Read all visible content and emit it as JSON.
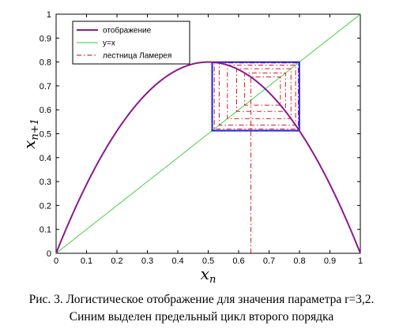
{
  "chart_data": {
    "type": "line",
    "parameter_r": 3.2,
    "xlim": [
      0,
      1
    ],
    "ylim": [
      0,
      1
    ],
    "xticks": [
      "0",
      "0.1",
      "0.2",
      "0.3",
      "0.4",
      "0.5",
      "0.6",
      "0.7",
      "0.8",
      "0.9",
      "1"
    ],
    "yticks": [
      "0",
      "0.1",
      "0.2",
      "0.3",
      "0.4",
      "0.5",
      "0.6",
      "0.7",
      "0.8",
      "0.9",
      "1"
    ],
    "xlabel": "x",
    "xlabel_sub": "n",
    "ylabel": "x",
    "ylabel_sub": "n+1",
    "grid": false,
    "legend_position": "top-left",
    "series": [
      {
        "name": "отображение",
        "kind": "function",
        "expr": "r*x*(1-x)",
        "color": "#8B1A8B",
        "style": "solid"
      },
      {
        "name": "y=x",
        "kind": "function",
        "expr": "x",
        "color": "#33CC33",
        "style": "solid"
      },
      {
        "name": "лестница Ламерея",
        "kind": "cobweb",
        "x0": 0.64,
        "color": "#CC0000",
        "style": "dashdot"
      }
    ],
    "cycle": {
      "points": [
        0.513,
        0.7995
      ],
      "color": "#2020E0"
    }
  },
  "caption": {
    "line1": "Рис. 3. Логистическое отображение для значения параметра r=3,2.",
    "line2": "Синим выделен предельный цикл второго порядка"
  }
}
